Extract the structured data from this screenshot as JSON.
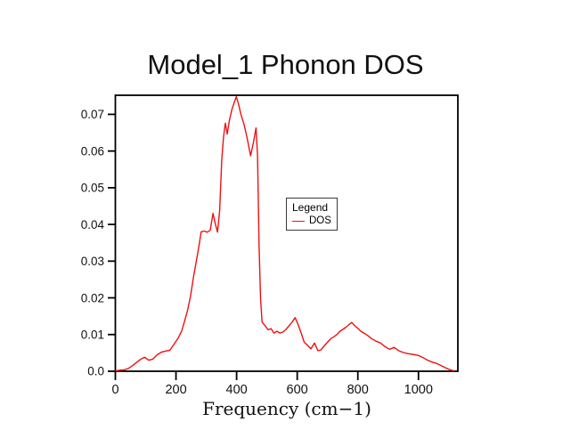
{
  "chart_data": {
    "type": "line",
    "title": "Model_1 Phonon DOS",
    "xlabel": "Frequency (cm−1)",
    "ylabel": "",
    "x_ticks": [
      "0",
      "200",
      "400",
      "600",
      "800",
      "1000"
    ],
    "y_ticks": [
      "0.0",
      "0.01",
      "0.02",
      "0.03",
      "0.04",
      "0.05",
      "0.06",
      "0.07"
    ],
    "xlim": [
      0,
      1130
    ],
    "ylim": [
      0,
      0.0752
    ],
    "grid": false,
    "axis_color": "#000000",
    "background": "#ffffff",
    "legend": {
      "title": "Legend",
      "position": "center-right",
      "entries": [
        {
          "label": "DOS",
          "color": "#ee1111"
        }
      ]
    },
    "series": [
      {
        "name": "DOS",
        "color": "#ee1111",
        "points": [
          [
            0,
            0.0001
          ],
          [
            14,
            0.0003
          ],
          [
            28,
            0.0004
          ],
          [
            42,
            0.0007
          ],
          [
            56,
            0.0015
          ],
          [
            70,
            0.0024
          ],
          [
            84,
            0.0033
          ],
          [
            97,
            0.0038
          ],
          [
            110,
            0.003
          ],
          [
            124,
            0.0033
          ],
          [
            138,
            0.0045
          ],
          [
            152,
            0.0052
          ],
          [
            166,
            0.0055
          ],
          [
            180,
            0.0057
          ],
          [
            193,
            0.0073
          ],
          [
            207,
            0.009
          ],
          [
            219,
            0.011
          ],
          [
            229,
            0.0138
          ],
          [
            239,
            0.0168
          ],
          [
            248,
            0.0205
          ],
          [
            258,
            0.0258
          ],
          [
            267,
            0.03
          ],
          [
            276,
            0.0342
          ],
          [
            283,
            0.038
          ],
          [
            293,
            0.0382
          ],
          [
            303,
            0.0379
          ],
          [
            313,
            0.0384
          ],
          [
            322,
            0.043
          ],
          [
            330,
            0.0401
          ],
          [
            337,
            0.0379
          ],
          [
            344,
            0.0438
          ],
          [
            351,
            0.0575
          ],
          [
            357,
            0.064
          ],
          [
            363,
            0.0676
          ],
          [
            369,
            0.0646
          ],
          [
            376,
            0.0682
          ],
          [
            384,
            0.0712
          ],
          [
            392,
            0.0732
          ],
          [
            399,
            0.0748
          ],
          [
            407,
            0.0726
          ],
          [
            414,
            0.07
          ],
          [
            424,
            0.0674
          ],
          [
            434,
            0.0638
          ],
          [
            446,
            0.0587
          ],
          [
            455,
            0.0621
          ],
          [
            464,
            0.0663
          ],
          [
            469,
            0.059
          ],
          [
            474,
            0.0345
          ],
          [
            479,
            0.0198
          ],
          [
            484,
            0.0134
          ],
          [
            494,
            0.0124
          ],
          [
            504,
            0.0113
          ],
          [
            514,
            0.0116
          ],
          [
            523,
            0.0104
          ],
          [
            533,
            0.0109
          ],
          [
            543,
            0.0104
          ],
          [
            553,
            0.0107
          ],
          [
            563,
            0.0114
          ],
          [
            573,
            0.0124
          ],
          [
            583,
            0.0134
          ],
          [
            593,
            0.0146
          ],
          [
            603,
            0.0127
          ],
          [
            613,
            0.0104
          ],
          [
            623,
            0.0079
          ],
          [
            635,
            0.007
          ],
          [
            645,
            0.0061
          ],
          [
            657,
            0.0077
          ],
          [
            668,
            0.0056
          ],
          [
            678,
            0.0058
          ],
          [
            688,
            0.0068
          ],
          [
            701,
            0.008
          ],
          [
            711,
            0.0089
          ],
          [
            721,
            0.0094
          ],
          [
            731,
            0.01
          ],
          [
            741,
            0.0109
          ],
          [
            751,
            0.0114
          ],
          [
            761,
            0.012
          ],
          [
            771,
            0.0127
          ],
          [
            780,
            0.0133
          ],
          [
            790,
            0.0124
          ],
          [
            800,
            0.0117
          ],
          [
            810,
            0.0109
          ],
          [
            820,
            0.0104
          ],
          [
            830,
            0.0099
          ],
          [
            845,
            0.0089
          ],
          [
            860,
            0.0082
          ],
          [
            875,
            0.0077
          ],
          [
            890,
            0.0067
          ],
          [
            905,
            0.006
          ],
          [
            920,
            0.0065
          ],
          [
            935,
            0.0056
          ],
          [
            950,
            0.0051
          ],
          [
            965,
            0.0048
          ],
          [
            980,
            0.0046
          ],
          [
            1000,
            0.0043
          ],
          [
            1015,
            0.0037
          ],
          [
            1030,
            0.003
          ],
          [
            1045,
            0.0025
          ],
          [
            1060,
            0.0021
          ],
          [
            1075,
            0.0015
          ],
          [
            1090,
            0.0009
          ],
          [
            1105,
            0.0004
          ],
          [
            1118,
            0.0001
          ]
        ]
      }
    ]
  }
}
